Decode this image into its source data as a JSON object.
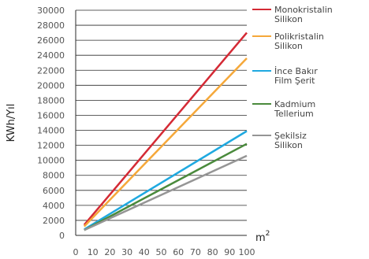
{
  "chart_data": {
    "type": "line",
    "title": "",
    "ylabel": "KWh/Yıl",
    "xlabel_base": "m",
    "xlabel_exp": "2",
    "x_ticks": [
      0,
      10,
      20,
      30,
      40,
      50,
      60,
      70,
      80,
      90,
      100
    ],
    "y_ticks": [
      0,
      2000,
      4000,
      6000,
      8000,
      10000,
      12000,
      14000,
      16000,
      18000,
      20000,
      22000,
      24000,
      26000,
      28000,
      30000
    ],
    "x_tick_labels": [
      "0",
      "10",
      "20",
      "30",
      "40",
      "50",
      "60",
      "70",
      "80",
      "90",
      "100"
    ],
    "y_tick_labels": [
      "0",
      "2000",
      "4000",
      "6000",
      "8000",
      "10000",
      "12000",
      "14000",
      "16000",
      "18000",
      "20000",
      "22000",
      "24000",
      "26000",
      "28000",
      "30000"
    ],
    "xlim": [
      0,
      100
    ],
    "ylim": [
      0,
      30000
    ],
    "grid": "horizontal",
    "legend_position": "right",
    "series": [
      {
        "name_lines": [
          "Monokristalin",
          "Silikon"
        ],
        "color": "#d42a35",
        "x": [
          5,
          100
        ],
        "y": [
          1400,
          27000
        ]
      },
      {
        "name_lines": [
          "Polikristalin",
          "Silikon"
        ],
        "color": "#f5a83a",
        "x": [
          5,
          100
        ],
        "y": [
          1200,
          23600
        ]
      },
      {
        "name_lines": [
          "İnce Bakır",
          "Film Şerit"
        ],
        "color": "#1fa9e0",
        "x": [
          5,
          100
        ],
        "y": [
          800,
          13900
        ]
      },
      {
        "name_lines": [
          "Kadmium",
          "Tellerium"
        ],
        "color": "#4a8a3c",
        "x": [
          5,
          100
        ],
        "y": [
          700,
          12200
        ]
      },
      {
        "name_lines": [
          "Şekilsiz",
          "Silikon"
        ],
        "color": "#959595",
        "x": [
          5,
          100
        ],
        "y": [
          700,
          10600
        ]
      }
    ]
  }
}
